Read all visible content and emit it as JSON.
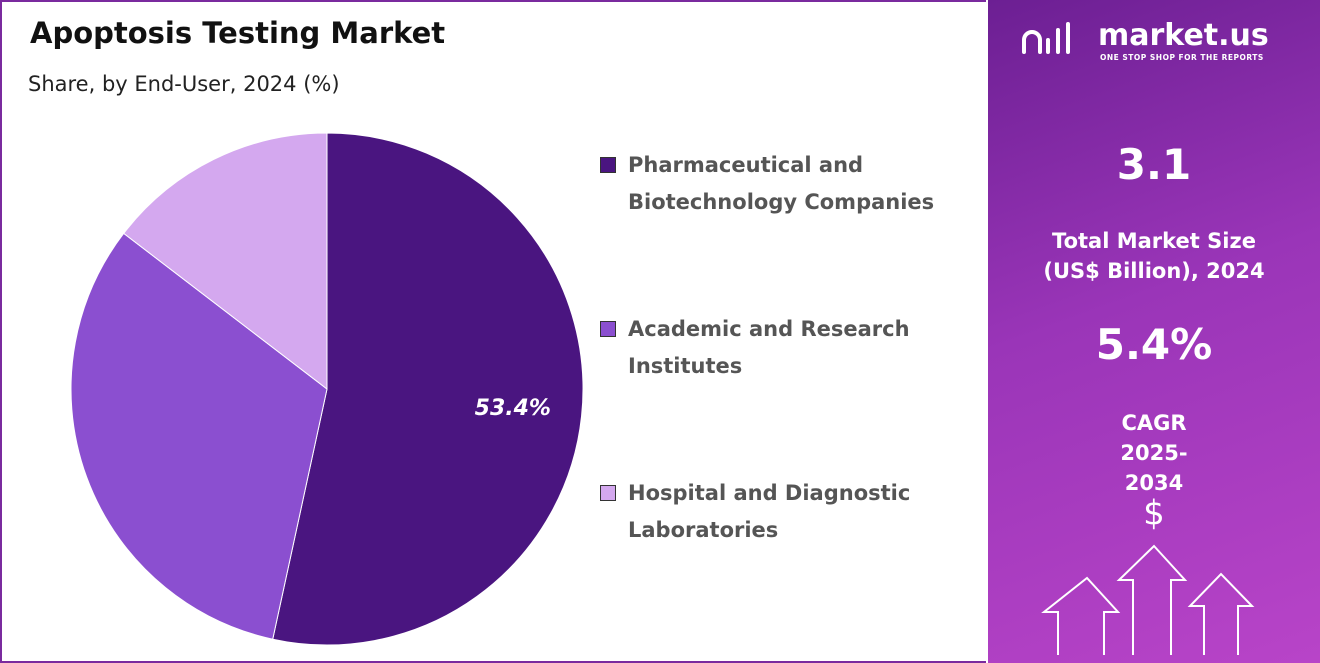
{
  "chart_data": {
    "type": "pie",
    "title": "Apoptosis Testing Market",
    "subtitle": "Share, by End-User, 2024 (%)",
    "categories": [
      "Pharmaceutical and Biotechnology Companies",
      "Academic and Research Institutes",
      "Hospital and Diagnostic Laboratories"
    ],
    "values": [
      53.4,
      32.0,
      14.6
    ],
    "value_labels": [
      "53.4%",
      null,
      null
    ],
    "colors": [
      "#4a1580",
      "#8b4fd0",
      "#d4a8ef"
    ]
  },
  "panel": {
    "brand": "market.us",
    "tagline": "ONE STOP SHOP FOR THE REPORTS",
    "market_size": "3.1",
    "market_size_label": "Total Market Size (US$ Billion), 2024",
    "cagr": "5.4%",
    "cagr_label": "CAGR 2025-2034"
  }
}
